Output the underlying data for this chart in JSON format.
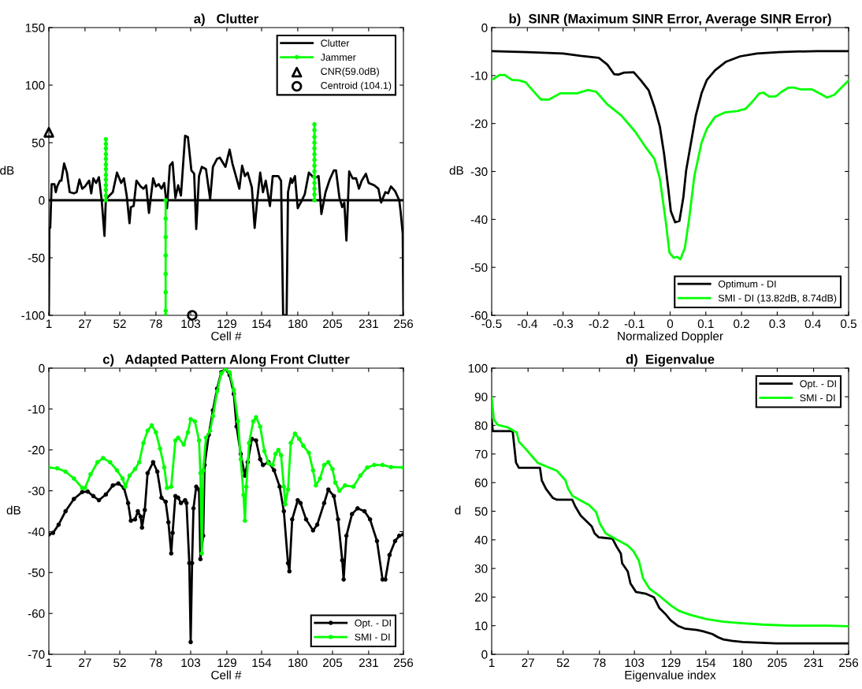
{
  "chart_data": [
    {
      "type": "line",
      "title": "a)   Clutter",
      "xlabel": "Cell #",
      "ylabel": "dB",
      "xlim": [
        1,
        256
      ],
      "xticks": [
        1,
        27,
        52,
        78,
        103,
        129,
        154,
        180,
        205,
        231,
        256
      ],
      "ylim": [
        -100,
        150
      ],
      "yticks": [
        -100,
        -50,
        0,
        50,
        100,
        150
      ],
      "legend": "top right",
      "grid": false,
      "ref_lines": [
        {
          "axis": "y",
          "value": 0,
          "color": "#000000"
        }
      ],
      "series": [
        {
          "name": "Clutter",
          "color": "#000000",
          "marker": "none",
          "x": [
            1,
            1.4,
            2,
            3,
            5,
            6,
            7,
            9,
            10,
            12,
            14,
            16,
            19,
            21,
            23,
            25,
            27,
            30,
            31.5,
            33,
            35,
            37,
            39,
            41,
            42,
            44.5,
            47,
            50,
            53,
            55,
            57,
            59,
            60,
            62,
            64,
            67,
            69,
            71,
            73,
            76,
            78,
            80,
            82,
            84,
            86,
            88,
            90,
            92,
            94,
            96,
            99,
            101,
            103.5,
            105.5,
            107,
            109,
            111,
            114,
            117,
            119,
            122,
            124,
            128,
            131,
            133,
            136,
            138,
            140,
            142,
            144,
            147,
            149,
            151,
            153,
            155,
            157,
            160,
            162,
            166,
            168,
            169.5,
            172,
            173,
            175,
            176,
            178,
            180,
            183,
            185,
            188,
            192,
            195,
            197,
            200,
            203,
            206,
            207.5,
            210,
            212,
            213.5,
            215,
            217,
            219.5,
            222,
            224,
            226,
            229,
            231,
            235,
            238,
            240,
            243,
            245,
            247,
            250,
            253,
            254,
            255.5,
            256
          ],
          "values": [
            -100,
            -24,
            -24,
            14,
            14,
            7,
            12,
            17,
            17,
            32,
            24,
            7,
            6,
            7,
            18,
            10,
            12,
            17,
            6,
            19,
            15,
            20,
            0,
            -31,
            1,
            4,
            7,
            24,
            15,
            19,
            4,
            -20,
            -6,
            -5,
            17,
            12,
            10,
            13,
            -11,
            19,
            12,
            14,
            10,
            15,
            -7,
            30,
            33,
            2,
            13,
            4,
            56,
            55,
            26,
            23,
            -25,
            21,
            29,
            27,
            1,
            29,
            36,
            37,
            29,
            44,
            32,
            19,
            10,
            30,
            21,
            24,
            11,
            -24,
            2,
            24,
            7,
            17,
            -5,
            21,
            21,
            17,
            -100,
            -100,
            7,
            19,
            15,
            21,
            -7,
            0,
            5,
            24,
            19,
            21,
            -12,
            7,
            18,
            26,
            26,
            2,
            -6,
            -2,
            -35,
            25,
            19,
            19,
            10,
            17,
            23,
            15,
            13,
            10,
            -2,
            7,
            6,
            12,
            8,
            0,
            -10,
            -29,
            -100
          ]
        },
        {
          "name": "Jammer",
          "color": "#00ff00",
          "marker": "circle",
          "x": [
            42,
            42,
            42,
            42,
            42,
            42,
            42,
            42,
            42,
            42,
            42,
            42,
            42,
            60,
            85,
            85,
            85,
            85,
            85,
            85,
            85,
            85,
            150,
            192,
            192,
            192,
            192,
            192,
            192,
            192,
            192,
            192,
            192,
            192,
            192,
            192,
            192
          ],
          "values": [
            0,
            4,
            9,
            13,
            18,
            22,
            27,
            31,
            36,
            40,
            45,
            49,
            53,
            null,
            0,
            -16,
            -32,
            -48,
            -64,
            -80,
            -96,
            -100,
            null,
            0,
            5,
            10,
            15,
            20,
            25,
            30,
            35,
            40,
            45,
            50,
            55,
            61,
            66
          ]
        },
        {
          "name": "CNR(59.0dB)",
          "type": "scatter",
          "color": "#000000",
          "marker": "triangle",
          "x": [
            1
          ],
          "values": [
            59
          ]
        },
        {
          "name": "Centroid (104.1)",
          "type": "scatter",
          "color": "#000000",
          "marker": "circle",
          "x": [
            104.1
          ],
          "values": [
            -100
          ]
        }
      ]
    },
    {
      "type": "line",
      "title": "b)  SINR (Maximum SINR Error, Average SINR Error)",
      "xlabel": "Normalized Doppler",
      "ylabel": "dB",
      "xlim": [
        -0.5,
        0.5
      ],
      "xticks": [
        -0.5,
        -0.4,
        -0.3,
        -0.2,
        -0.1,
        0,
        0.1,
        0.2,
        0.3,
        0.4,
        0.5
      ],
      "ylim": [
        -60,
        0
      ],
      "yticks": [
        -60,
        -50,
        -40,
        -30,
        -20,
        -10,
        0
      ],
      "legend": "bottom right",
      "grid": false,
      "series": [
        {
          "name": "Optimum - DI",
          "color": "#000000",
          "marker": "none",
          "x": [
            -0.5,
            -0.4,
            -0.3,
            -0.25,
            -0.2,
            -0.176,
            -0.157,
            -0.145,
            -0.129,
            -0.102,
            -0.083,
            -0.06,
            -0.044,
            -0.029,
            -0.017,
            -0.005,
            0.002,
            0.014,
            0.026,
            0.037,
            0.045,
            0.057,
            0.072,
            0.088,
            0.103,
            0.126,
            0.157,
            0.196,
            0.243,
            0.305,
            0.351,
            0.413,
            0.5
          ],
          "values": [
            -4.9,
            -5.1,
            -5.4,
            -5.9,
            -6.3,
            -7.7,
            -9.7,
            -9.8,
            -9.4,
            -9.3,
            -10.9,
            -13.1,
            -16.6,
            -20.6,
            -26.3,
            -33.7,
            -38.3,
            -40.6,
            -40.3,
            -35.4,
            -29.7,
            -24.6,
            -18.3,
            -13.7,
            -10.9,
            -8.9,
            -7.1,
            -6.0,
            -5.4,
            -5.1,
            -5.0,
            -4.9,
            -4.9
          ]
        },
        {
          "name": "SMI - DI (13.82dB, 8.74dB)",
          "color": "#00ff00",
          "marker": "none",
          "x": [
            -0.5,
            -0.478,
            -0.463,
            -0.443,
            -0.424,
            -0.405,
            -0.385,
            -0.362,
            -0.339,
            -0.308,
            -0.261,
            -0.23,
            -0.207,
            -0.176,
            -0.137,
            -0.098,
            -0.067,
            -0.044,
            -0.029,
            -0.013,
            -0.002,
            0.01,
            0.02,
            0.029,
            0.041,
            0.053,
            0.068,
            0.088,
            0.103,
            0.126,
            0.153,
            0.188,
            0.212,
            0.231,
            0.25,
            0.262,
            0.278,
            0.297,
            0.312,
            0.332,
            0.347,
            0.367,
            0.398,
            0.421,
            0.44,
            0.46,
            0.483,
            0.5
          ],
          "values": [
            -10.9,
            -9.9,
            -9.9,
            -10.9,
            -11.0,
            -11.4,
            -13.1,
            -15.0,
            -15.0,
            -13.7,
            -13.7,
            -13.0,
            -13.4,
            -16.0,
            -18.3,
            -21.7,
            -25.1,
            -27.4,
            -31.4,
            -40.0,
            -46.9,
            -48.0,
            -47.8,
            -48.3,
            -46.0,
            -40.0,
            -30.9,
            -24.0,
            -21.1,
            -18.6,
            -17.7,
            -17.4,
            -16.9,
            -15.4,
            -13.7,
            -13.6,
            -14.4,
            -14.3,
            -13.4,
            -12.5,
            -12.5,
            -12.9,
            -12.9,
            -13.8,
            -14.6,
            -14.0,
            -12.3,
            -11.0
          ]
        }
      ]
    },
    {
      "type": "line",
      "title": "c)   Adapted Pattern Along Front Clutter",
      "xlabel": "Cell #",
      "ylabel": "dB",
      "xlim": [
        1,
        256
      ],
      "xticks": [
        1,
        27,
        52,
        78,
        103,
        129,
        154,
        180,
        205,
        231,
        256
      ],
      "ylim": [
        -70,
        0
      ],
      "yticks": [
        -70,
        -60,
        -50,
        -40,
        -30,
        -20,
        -10,
        0
      ],
      "legend": "bottom right",
      "grid": false,
      "series": [
        {
          "name": "Opt. - DI",
          "color": "#000000",
          "marker": "circle",
          "x": [
            1,
            4,
            8,
            13,
            19,
            25,
            29,
            33,
            37,
            42,
            47,
            51,
            55,
            58,
            60,
            63,
            65,
            67,
            68,
            70,
            72,
            76,
            79,
            82,
            85,
            87,
            89,
            90,
            92,
            94,
            96,
            99,
            100,
            102,
            103,
            104,
            105,
            107,
            109,
            110,
            112,
            113,
            116,
            119,
            122,
            125,
            128,
            131,
            134,
            136,
            139,
            142,
            144,
            147,
            150,
            153,
            155,
            159,
            163,
            167,
            170,
            173,
            174,
            176,
            180,
            182,
            186,
            191,
            194,
            199,
            202,
            206,
            209,
            212,
            213,
            215,
            219,
            223,
            228,
            232,
            237,
            241,
            243,
            246,
            250,
            253,
            256
          ],
          "values": [
            -40.7,
            -40.3,
            -38.3,
            -35,
            -32,
            -30.3,
            -30.2,
            -31.3,
            -32.3,
            -30.9,
            -28.7,
            -28.2,
            -29.3,
            -33,
            -37.3,
            -37,
            -35,
            -36.3,
            -39,
            -34.7,
            -25.7,
            -23,
            -25.3,
            -31.7,
            -32.7,
            -37.7,
            -45.3,
            -40.3,
            -31.3,
            -31.7,
            -33,
            -32.3,
            -33,
            -47.7,
            -67,
            -47.7,
            -34.3,
            -29,
            -29.7,
            -46.7,
            -41,
            -23.7,
            -16.3,
            -10.3,
            -5,
            -1,
            -0.2,
            -1.7,
            -6.3,
            -14.3,
            -21,
            -26.3,
            -23,
            -17.3,
            -17.7,
            -22.3,
            -23.7,
            -23,
            -25,
            -29,
            -35,
            -47.7,
            -49.7,
            -37,
            -32.3,
            -33,
            -37,
            -39.7,
            -38.3,
            -33,
            -29.7,
            -31.3,
            -37,
            -47,
            -51.7,
            -41,
            -35.7,
            -34.3,
            -35,
            -37,
            -42.3,
            -51.7,
            -51.7,
            -45.7,
            -42.3,
            -41,
            -40.7
          ]
        },
        {
          "name": "SMI - DI",
          "color": "#00ff00",
          "marker": "circle",
          "x": [
            1,
            7,
            13,
            19,
            25,
            27,
            31,
            36,
            40,
            45,
            50,
            54,
            56,
            59,
            63,
            66,
            69,
            72,
            75,
            78,
            81,
            84,
            86,
            89,
            92,
            94,
            98,
            101,
            103,
            106,
            109,
            110,
            111,
            112,
            114,
            117,
            119,
            122,
            125,
            128,
            131,
            134,
            137,
            139,
            141,
            142,
            143,
            145,
            148,
            150,
            153,
            156,
            159,
            162,
            164,
            166,
            168,
            170,
            171,
            173,
            175,
            178,
            181,
            184,
            188,
            191,
            193,
            196,
            199,
            202,
            205,
            207,
            210,
            214,
            220,
            225,
            230,
            235,
            241,
            247,
            256
          ],
          "values": [
            -24.3,
            -24.5,
            -25.3,
            -27,
            -29.3,
            -29.3,
            -26,
            -23,
            -22,
            -23,
            -25,
            -27,
            -29,
            -26.3,
            -24.7,
            -23,
            -18.3,
            -15.3,
            -14,
            -15.7,
            -19.7,
            -24.3,
            -29.3,
            -29,
            -17.7,
            -17,
            -18.7,
            -15.7,
            -12.5,
            -13,
            -17.7,
            -25.7,
            -45.3,
            -25,
            -17,
            -15.3,
            -11.7,
            -5.7,
            -1.3,
            -0.2,
            -1,
            -5.3,
            -13,
            -22.3,
            -31,
            -37.3,
            -29,
            -18.3,
            -13,
            -12,
            -14.3,
            -20.3,
            -23.3,
            -23.7,
            -21,
            -20,
            -21.3,
            -29,
            -33.3,
            -29.7,
            -18.3,
            -16,
            -17.3,
            -19,
            -20.7,
            -25,
            -28.7,
            -27,
            -23.7,
            -23,
            -24.7,
            -28,
            -30,
            -28.7,
            -29,
            -26.3,
            -24.3,
            -23.7,
            -23.7,
            -24.2,
            -24.3
          ]
        }
      ]
    },
    {
      "type": "line",
      "title": "d)  Eigenvalue",
      "xlabel": "Eigenvalue index",
      "ylabel": "d",
      "xlim": [
        1,
        256
      ],
      "xticks": [
        1,
        27,
        52,
        78,
        103,
        129,
        154,
        180,
        205,
        231,
        256
      ],
      "ylim": [
        0,
        100
      ],
      "yticks": [
        0,
        10,
        20,
        30,
        40,
        50,
        60,
        70,
        80,
        90,
        100
      ],
      "legend": "top right",
      "grid": false,
      "series": [
        {
          "name": "Opt. - DI",
          "color": "#000000",
          "marker": "none",
          "x": [
            1,
            1.8,
            16,
            18.4,
            20.4,
            35.5,
            36.8,
            39.8,
            44.8,
            47.7,
            58.6,
            60.6,
            64.6,
            72.5,
            74.5,
            77.4,
            87.3,
            90.3,
            93.3,
            94.2,
            98.2,
            100.2,
            104.1,
            111,
            117,
            120.9,
            124.9,
            128.9,
            133.9,
            138.8,
            147.7,
            151.7,
            158.6,
            162.6,
            166.5,
            172.5,
            180.4,
            190.3,
            204.2,
            256
          ],
          "values": [
            82,
            78,
            78,
            67,
            65.2,
            65.2,
            60.8,
            57.8,
            54.6,
            54,
            54,
            51.8,
            48.5,
            44.7,
            42.3,
            40.9,
            40.4,
            37.6,
            35.2,
            31.8,
            29,
            24.7,
            21.8,
            21.2,
            19.9,
            16.1,
            14.2,
            11.9,
            10,
            9,
            8.5,
            8.1,
            7.1,
            6,
            5.2,
            4.7,
            4.3,
            4.1,
            3.8,
            3.8
          ]
        },
        {
          "name": "SMI - DI",
          "color": "#00ff00",
          "marker": "none",
          "x": [
            1,
            2.6,
            5.2,
            12.1,
            16,
            19,
            20.4,
            24.9,
            30.9,
            33.9,
            39.8,
            47.7,
            53.7,
            55.6,
            58.6,
            63.6,
            70.5,
            75.5,
            78.4,
            82.4,
            87.3,
            98.2,
            102.2,
            106.1,
            109.1,
            114,
            120.9,
            128.9,
            134.8,
            142.8,
            154.6,
            166.5,
            178.4,
            194.3,
            214.1,
            239.8,
            256
          ],
          "values": [
            89.7,
            82,
            80.2,
            79.4,
            78.3,
            77.5,
            74.3,
            72,
            68.6,
            66.9,
            65.7,
            64.1,
            60.8,
            57.9,
            55.4,
            54,
            52.2,
            49.8,
            45.6,
            42.3,
            40.9,
            38,
            36.1,
            32.8,
            26.6,
            22.8,
            20.4,
            17.1,
            15.2,
            13.8,
            12.3,
            11.4,
            10.9,
            10.4,
            10,
            10,
            9.8
          ]
        }
      ]
    }
  ]
}
